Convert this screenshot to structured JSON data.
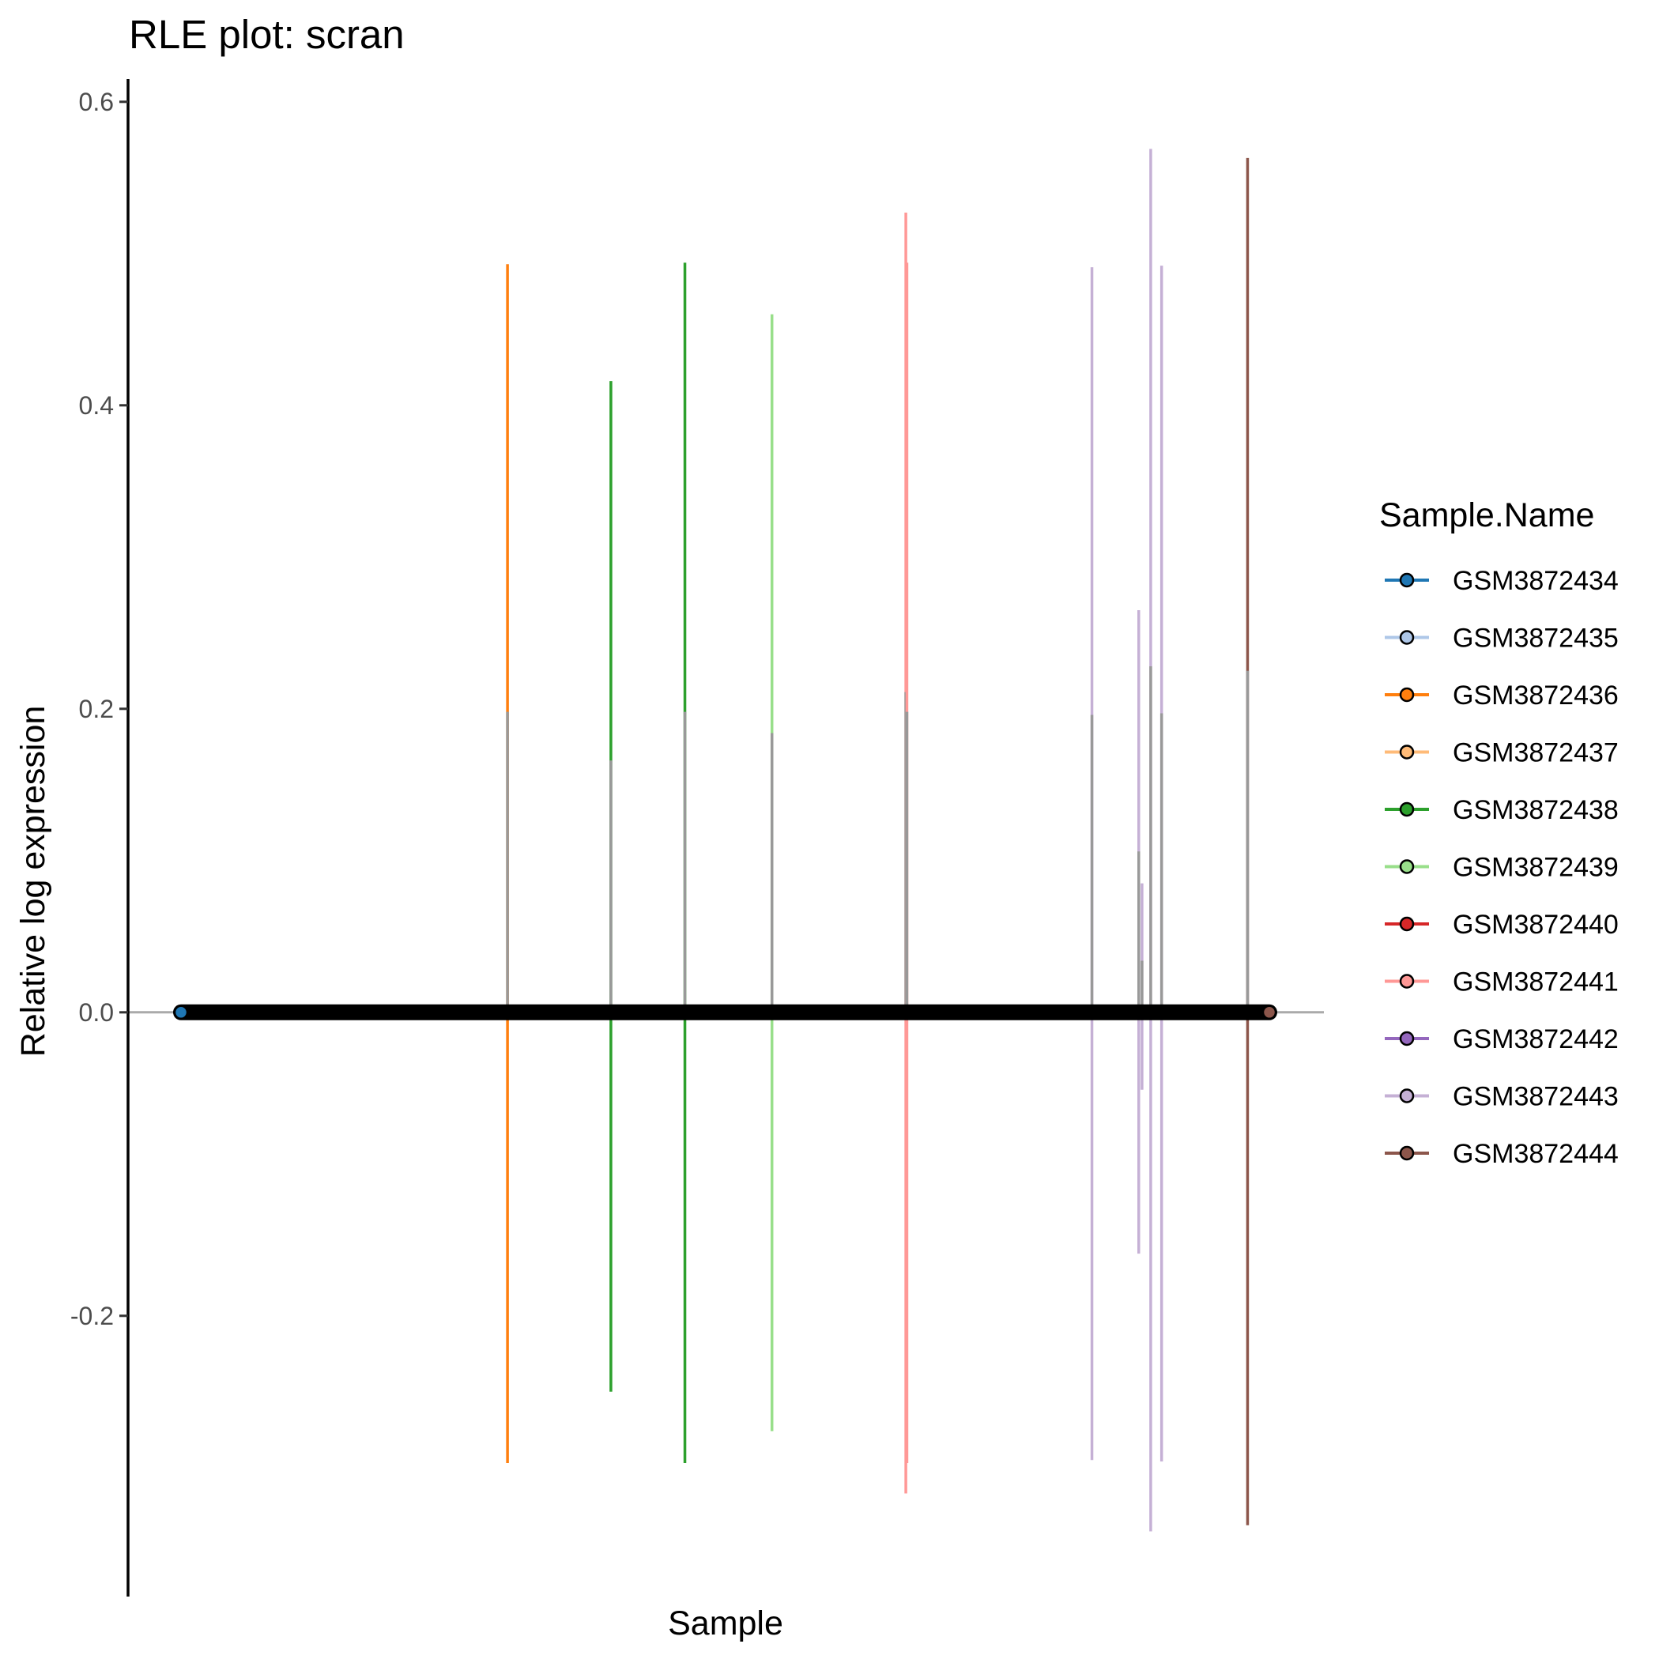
{
  "chart_data": {
    "type": "scatter",
    "title": "RLE plot: scran",
    "xlabel": "Sample",
    "ylabel": "Relative log expression",
    "ylim": [
      -0.385,
      0.615
    ],
    "y_ticks": [
      "-0.2",
      "0.0",
      "0.2",
      "0.4",
      "0.6"
    ],
    "y_tick_values": [
      -0.2,
      0.0,
      0.2,
      0.4,
      0.6
    ],
    "grid": false,
    "zero_line": 0.0,
    "legend": {
      "title": "Sample.Name",
      "placement": "right",
      "entries": [
        {
          "label": "GSM3872434",
          "color": "#1f77b4"
        },
        {
          "label": "GSM3872435",
          "color": "#aec7e8"
        },
        {
          "label": "GSM3872436",
          "color": "#ff7f0e"
        },
        {
          "label": "GSM3872437",
          "color": "#ffbb78"
        },
        {
          "label": "GSM3872438",
          "color": "#2ca02c"
        },
        {
          "label": "GSM3872439",
          "color": "#98df8a"
        },
        {
          "label": "GSM3872440",
          "color": "#d62728"
        },
        {
          "label": "GSM3872441",
          "color": "#ff9896"
        },
        {
          "label": "GSM3872442",
          "color": "#9467bd"
        },
        {
          "label": "GSM3872443",
          "color": "#c5b0d5"
        },
        {
          "label": "GSM3872444",
          "color": "#8c564b"
        }
      ]
    },
    "median_line_color": "#000000",
    "box_color": "#999999",
    "cells": [
      {
        "index": 0.3,
        "sample": "GSM3872436",
        "lower": -0.297,
        "q3": 0.198,
        "upper": 0.493
      },
      {
        "index": 0.395,
        "sample": "GSM3872438",
        "lower": -0.25,
        "q3": 0.166,
        "upper": 0.416
      },
      {
        "index": 0.463,
        "sample": "GSM3872438",
        "lower": -0.297,
        "q3": 0.198,
        "upper": 0.494
      },
      {
        "index": 0.543,
        "sample": "GSM3872439",
        "lower": -0.276,
        "q3": 0.184,
        "upper": 0.46
      },
      {
        "index": 0.666,
        "sample": "GSM3872441",
        "lower": -0.317,
        "q3": 0.211,
        "upper": 0.527
      },
      {
        "index": 0.667,
        "sample": "GSM3872441",
        "lower": -0.297,
        "q3": 0.198,
        "upper": 0.494
      },
      {
        "index": 0.837,
        "sample": "GSM3872443",
        "lower": -0.295,
        "q3": 0.196,
        "upper": 0.491
      },
      {
        "index": 0.88,
        "sample": "GSM3872443",
        "lower": -0.159,
        "q3": 0.106,
        "upper": 0.265
      },
      {
        "index": 0.883,
        "sample": "GSM3872443",
        "lower": -0.051,
        "q3": 0.034,
        "upper": 0.085
      },
      {
        "index": 0.891,
        "sample": "GSM3872443",
        "lower": -0.342,
        "q3": 0.228,
        "upper": 0.569
      },
      {
        "index": 0.901,
        "sample": "GSM3872443",
        "lower": -0.296,
        "q3": 0.197,
        "upper": 0.492
      },
      {
        "index": 0.98,
        "sample": "GSM3872444",
        "lower": -0.338,
        "q3": 0.225,
        "upper": 0.563
      }
    ],
    "points": [
      {
        "index": 0.0,
        "value": 0.0,
        "color": "#1f77b4"
      },
      {
        "index": 1.0,
        "value": 0.0,
        "color": "#8c564b"
      }
    ]
  }
}
